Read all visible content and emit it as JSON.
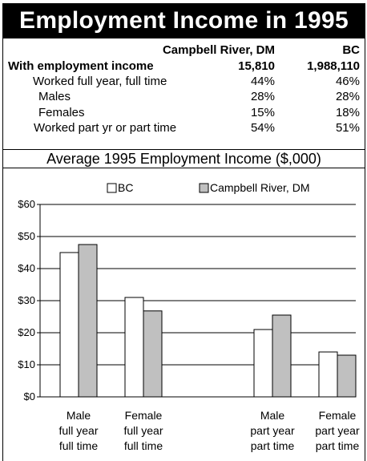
{
  "title": "Employment Income in 1995",
  "table": {
    "headers": [
      "Campbell River, DM",
      "BC"
    ],
    "rows": [
      {
        "label": "With employment income",
        "a": "15,810",
        "b": "1,988,110",
        "bold": true
      },
      {
        "label": "Worked full year, full time",
        "a": "44%",
        "b": "46%"
      },
      {
        "label": "Males",
        "a": "28%",
        "b": "28%"
      },
      {
        "label": "Females",
        "a": "15%",
        "b": "18%"
      },
      {
        "label": "Worked part yr or part time",
        "a": "54%",
        "b": "51%"
      }
    ]
  },
  "subtitle": "Average 1995 Employment Income ($,000)",
  "chart_data": {
    "type": "bar",
    "categories": [
      [
        "Male",
        "full year",
        "full time"
      ],
      [
        "Female",
        "full year",
        "full time"
      ],
      [
        "Male",
        "part year",
        "part time"
      ],
      [
        "Female",
        "part year",
        "part time"
      ]
    ],
    "series": [
      {
        "name": "BC",
        "values": [
          45,
          31,
          21,
          14
        ],
        "color": "#ffffff"
      },
      {
        "name": "Campbell River, DM",
        "values": [
          47.5,
          26.8,
          25.5,
          13
        ],
        "color": "#c0c0c0"
      }
    ],
    "ylim": [
      0,
      60
    ],
    "yticks": [
      "$0",
      "$10",
      "$20",
      "$30",
      "$40",
      "$50",
      "$60"
    ],
    "grid": true,
    "legend": "top"
  }
}
